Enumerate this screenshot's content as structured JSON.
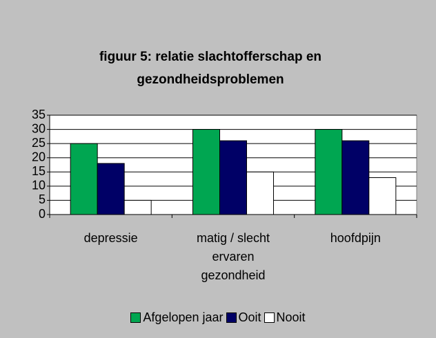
{
  "chart_data": {
    "type": "bar",
    "title": "figuur 5: relatie slachtofferschap en gezondheidsproblemen",
    "categories": [
      "depressie",
      "matig / slecht ervaren gezondheid",
      "hoofdpijn"
    ],
    "series": [
      {
        "name": "Afgelopen jaar",
        "color": "#00a651",
        "values": [
          25,
          30,
          30
        ]
      },
      {
        "name": "Ooit",
        "color": "#000066",
        "values": [
          18,
          26,
          26
        ]
      },
      {
        "name": "Nooit",
        "color": "#ffffff",
        "values": [
          5,
          15,
          13
        ]
      }
    ],
    "ylim": [
      0,
      35
    ],
    "yticks": [
      0,
      5,
      10,
      15,
      20,
      25,
      30,
      35
    ],
    "grid": true,
    "legend": "bottom"
  }
}
